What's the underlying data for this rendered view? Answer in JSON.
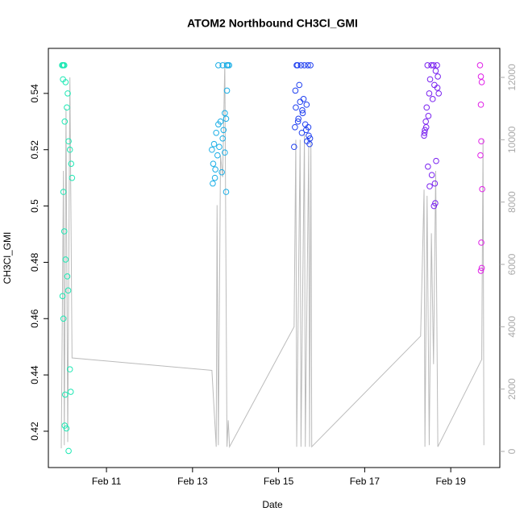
{
  "chart_data": {
    "type": "scatter",
    "title": "ATOM2 Northbound CH3Cl_GMI",
    "x_label": "Date",
    "y_label": "CH3Cl_GMI",
    "xlim": [
      9.65,
      20.14
    ],
    "xticks": [
      {
        "value": 11,
        "label": "Feb 11"
      },
      {
        "value": 13,
        "label": "Feb 13"
      },
      {
        "value": 15,
        "label": "Feb 15"
      },
      {
        "value": 17,
        "label": "Feb 17"
      },
      {
        "value": 19,
        "label": "Feb 19"
      }
    ],
    "ylim": [
      0.4071,
      0.556
    ],
    "yticks": [
      0.42,
      0.44,
      0.46,
      0.48,
      0.5,
      0.52,
      0.54
    ],
    "y2lim": [
      -517,
      12931
    ],
    "y2ticks": [
      0,
      2000,
      4000,
      6000,
      8000,
      10000,
      12000
    ],
    "series": [
      {
        "color": "#1ee8b4",
        "x": [
          9.97,
          9.98,
          10.0,
          10.02,
          9.99,
          10.05,
          10.1,
          10.08,
          10.03,
          10.12,
          10.15,
          10.18,
          10.2,
          10.0,
          10.02,
          10.05,
          10.09,
          10.11,
          9.98,
          10.0,
          10.15,
          10.17,
          10.04,
          10.03,
          10.07,
          10.12
        ],
        "values": [
          0.55,
          0.55,
          0.55,
          0.55,
          0.545,
          0.544,
          0.54,
          0.535,
          0.53,
          0.523,
          0.52,
          0.515,
          0.51,
          0.505,
          0.491,
          0.481,
          0.475,
          0.47,
          0.468,
          0.46,
          0.442,
          0.434,
          0.433,
          0.422,
          0.421,
          0.413
        ]
      },
      {
        "color": "#1aaee6",
        "x": [
          13.45,
          13.48,
          13.5,
          13.52,
          13.55,
          13.58,
          13.6,
          13.62,
          13.65,
          13.68,
          13.7,
          13.72,
          13.75,
          13.78,
          13.8,
          13.82,
          13.85,
          13.47,
          13.53,
          13.6,
          13.7,
          13.75,
          13.8,
          13.78
        ],
        "values": [
          0.52,
          0.515,
          0.522,
          0.51,
          0.526,
          0.518,
          0.529,
          0.521,
          0.53,
          0.512,
          0.524,
          0.527,
          0.519,
          0.531,
          0.55,
          0.55,
          0.55,
          0.508,
          0.513,
          0.55,
          0.55,
          0.533,
          0.541,
          0.505
        ]
      },
      {
        "color": "#2040f0",
        "x": [
          15.36,
          15.38,
          15.4,
          15.42,
          15.44,
          15.46,
          15.48,
          15.5,
          15.52,
          15.54,
          15.56,
          15.58,
          15.6,
          15.62,
          15.64,
          15.66,
          15.68,
          15.7,
          15.72,
          15.74,
          15.39,
          15.45,
          15.55,
          15.65,
          15.69,
          15.73
        ],
        "values": [
          0.521,
          0.528,
          0.535,
          0.55,
          0.55,
          0.531,
          0.543,
          0.537,
          0.55,
          0.526,
          0.533,
          0.538,
          0.55,
          0.529,
          0.527,
          0.523,
          0.55,
          0.525,
          0.522,
          0.55,
          0.541,
          0.53,
          0.534,
          0.536,
          0.528,
          0.524
        ]
      },
      {
        "color": "#7a22f0",
        "x": [
          18.38,
          18.4,
          18.42,
          18.44,
          18.46,
          18.48,
          18.5,
          18.52,
          18.55,
          18.58,
          18.6,
          18.62,
          18.65,
          18.68,
          18.7,
          18.72,
          18.39,
          18.43,
          18.47,
          18.51,
          18.56,
          18.61,
          18.64,
          18.66,
          18.63,
          18.69
        ],
        "values": [
          0.525,
          0.527,
          0.53,
          0.535,
          0.55,
          0.532,
          0.54,
          0.545,
          0.55,
          0.538,
          0.55,
          0.543,
          0.548,
          0.55,
          0.546,
          0.54,
          0.526,
          0.528,
          0.514,
          0.507,
          0.511,
          0.5,
          0.501,
          0.516,
          0.508,
          0.542
        ]
      },
      {
        "color": "#e020e8",
        "x": [
          19.68,
          19.7,
          19.72,
          19.7,
          19.71,
          19.69,
          19.73,
          19.71,
          19.72,
          19.7
        ],
        "values": [
          0.55,
          0.546,
          0.544,
          0.536,
          0.523,
          0.518,
          0.506,
          0.487,
          0.478,
          0.477
        ]
      },
      {
        "type": "line",
        "axis": "y2",
        "color": "#bbbbbb",
        "x": [
          9.95,
          10.0,
          10.02,
          10.06,
          10.1,
          10.15,
          10.2,
          13.45,
          13.55,
          13.57,
          13.6,
          13.65,
          13.7,
          13.75,
          13.8,
          13.83,
          13.86,
          15.36,
          15.4,
          15.42,
          15.5,
          15.52,
          15.6,
          15.62,
          15.7,
          15.72,
          15.75,
          15.77,
          18.3,
          18.38,
          18.4,
          18.45,
          18.5,
          18.55,
          18.6,
          18.65,
          18.7,
          19.72,
          19.75,
          19.77
        ],
        "values": [
          100,
          9000,
          200,
          11000,
          300,
          12000,
          3000,
          2600,
          150,
          7900,
          200,
          9500,
          8800,
          12500,
          150,
          1000,
          150,
          4000,
          10000,
          150,
          10000,
          150,
          10200,
          150,
          9800,
          150,
          10000,
          150,
          3700,
          8400,
          150,
          8200,
          200,
          7000,
          2800,
          9000,
          150,
          2950,
          10000,
          200
        ]
      }
    ]
  }
}
